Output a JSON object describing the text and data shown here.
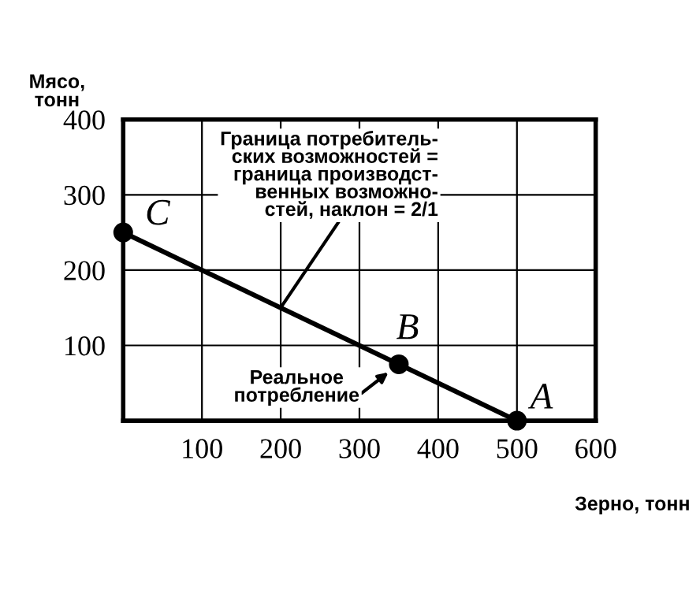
{
  "chart_data": {
    "type": "line",
    "xlabel": "Зерно, тонн",
    "ylabel": "Мясо,\nтонн",
    "x": [
      0,
      350,
      500
    ],
    "series": [
      {
        "color": "#000000",
        "values": [
          250,
          75,
          0
        ]
      }
    ],
    "xlim": [
      0,
      600
    ],
    "ylim": [
      0,
      400
    ],
    "xticks": [
      100,
      200,
      300,
      400,
      500,
      600
    ],
    "yticks": [
      100,
      200,
      300,
      400
    ],
    "grid": true,
    "marker": "circle",
    "line_style": "solid",
    "annotations": [
      {
        "text": "C",
        "x": 0,
        "y": 250
      },
      {
        "text": "B",
        "x": 350,
        "y": 75
      },
      {
        "text": "A",
        "x": 500,
        "y": 0
      },
      {
        "text": "Граница потребитель-\nских возможностей =\nграница производст-\nвенных возможно-\nстей, наклон = 2/1",
        "x": 200,
        "y": 150
      },
      {
        "text": "Реальное\nпотребление",
        "x": 350,
        "y": 75
      }
    ]
  }
}
